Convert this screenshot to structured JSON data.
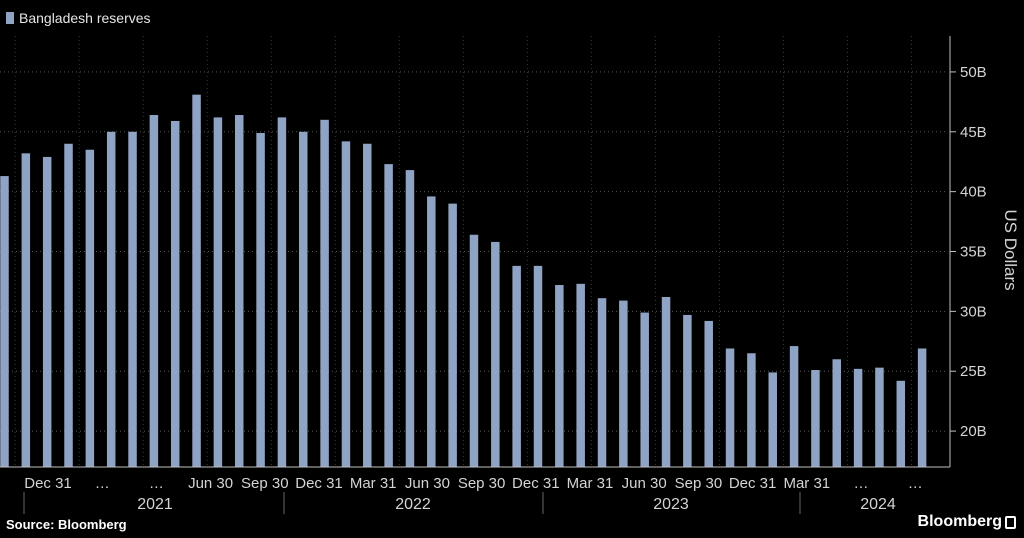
{
  "legend": {
    "label": "Bangladesh reserves",
    "color": "#8fa3c4"
  },
  "source": "Source: Bloomberg",
  "brand": "Bloomberg",
  "chart_data": {
    "type": "bar",
    "ylabel": "US Dollars",
    "ylim": [
      17,
      53
    ],
    "yticks": [
      {
        "value": 20,
        "label": "20B"
      },
      {
        "value": 25,
        "label": "25B"
      },
      {
        "value": 30,
        "label": "30B"
      },
      {
        "value": 35,
        "label": "35B"
      },
      {
        "value": 40,
        "label": "40B"
      },
      {
        "value": 45,
        "label": "45B"
      },
      {
        "value": 50,
        "label": "50B"
      }
    ],
    "grid": true,
    "legend_position": "top-left",
    "bar_color": "#8fa3c4",
    "series": [
      {
        "name": "Bangladesh reserves",
        "values": [
          41.3,
          43.2,
          42.9,
          44.0,
          43.5,
          45.0,
          45.0,
          46.4,
          45.9,
          48.1,
          46.2,
          46.4,
          44.9,
          46.2,
          45.0,
          46.0,
          44.2,
          44.0,
          42.3,
          41.8,
          39.6,
          39.0,
          36.4,
          35.8,
          33.8,
          33.8,
          32.2,
          32.3,
          31.1,
          30.9,
          29.9,
          31.2,
          29.7,
          29.2,
          26.9,
          26.5,
          24.9,
          27.1,
          25.1,
          26.0,
          25.2,
          25.3,
          24.2,
          26.9
        ]
      }
    ],
    "x_tick_labels": [
      "Dec 31",
      "…",
      "…",
      "Jun 30",
      "Sep 30",
      "Dec 31",
      "Mar 31",
      "Jun 30",
      "Sep 30",
      "Dec 31",
      "Mar 31",
      "Jun 30",
      "Sep 30",
      "Dec 31",
      "Mar 31",
      "…",
      "…"
    ],
    "years": [
      "2021",
      "2022",
      "2023",
      "2024"
    ]
  }
}
